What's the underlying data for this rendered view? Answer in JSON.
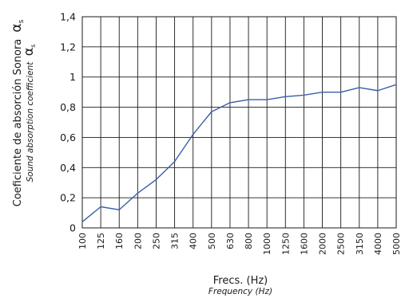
{
  "chart_data": {
    "type": "line",
    "categories": [
      "100",
      "125",
      "160",
      "200",
      "250",
      "315",
      "400",
      "500",
      "630",
      "800",
      "1000",
      "1250",
      "1600",
      "2000",
      "2500",
      "3150",
      "4000",
      "5000"
    ],
    "series": [
      {
        "values": [
          0.04,
          0.14,
          0.12,
          0.23,
          0.32,
          0.44,
          0.62,
          0.77,
          0.83,
          0.85,
          0.85,
          0.87,
          0.88,
          0.9,
          0.9,
          0.93,
          0.91,
          0.95
        ],
        "color": "#3a5ea8"
      }
    ],
    "ylim": [
      0,
      1.4
    ],
    "yticks": [
      0,
      0.2,
      0.4,
      0.6,
      0.8,
      1,
      1.2,
      1.4
    ],
    "ytick_labels": [
      "0",
      "0,2",
      "0,4",
      "0,6",
      "0,8",
      "1",
      "1,2",
      "1,4"
    ],
    "xlabel": "Frecs. (Hz)",
    "xlabel_sub": "Frequency (Hz)",
    "ylabel": "Coeficiente de absorción Sonora",
    "ylabel_sub": "Sound absorption coefficient",
    "ylabel_symbol": "α",
    "ylabel_symbol_sub": "s",
    "grid": true,
    "legend": "none"
  }
}
